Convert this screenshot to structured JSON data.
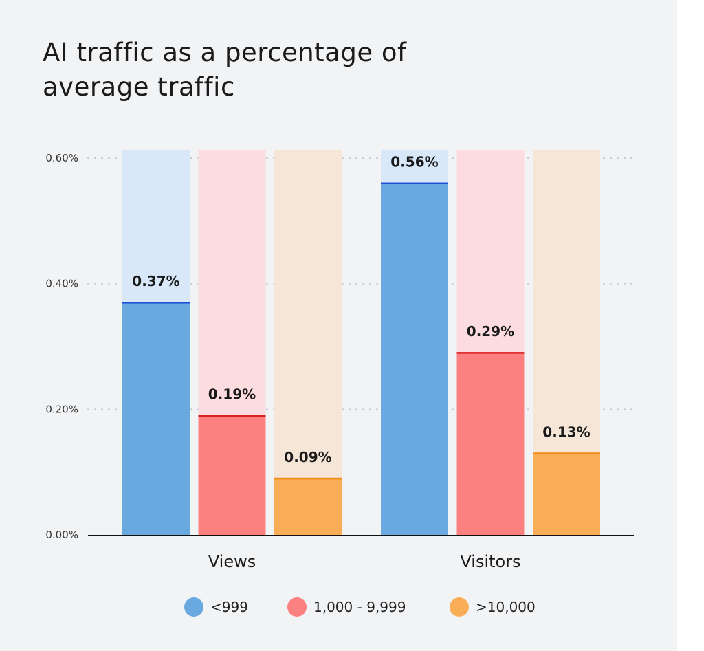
{
  "chart_data": {
    "type": "bar",
    "title": "AI traffic as a percentage of average traffic",
    "categories": [
      "Views",
      "Visitors"
    ],
    "series": [
      {
        "name": "<999",
        "values": [
          0.37,
          0.56
        ],
        "labels": [
          "0.37%",
          "0.56%"
        ],
        "color": "#6aa8e0",
        "track": "#d8e8f8",
        "line": "#1f4fd6"
      },
      {
        "name": "1,000 - 9,999",
        "values": [
          0.19,
          0.29
        ],
        "labels": [
          "0.19%",
          "0.29%"
        ],
        "color": "#fd8080",
        "track": "#fddce0",
        "line": "#d91c1c"
      },
      {
        "name": ">10,000",
        "values": [
          0.09,
          0.13
        ],
        "labels": [
          "0.09%",
          "0.13%"
        ],
        "color": "#f9ad57",
        "track": "#f5e6d8",
        "line": "#f08a10"
      }
    ],
    "yticks": [
      "0.00%",
      "0.20%",
      "0.40%",
      "0.60%"
    ],
    "ylim": [
      0,
      0.6
    ],
    "grid": true,
    "legend": "bottom"
  }
}
